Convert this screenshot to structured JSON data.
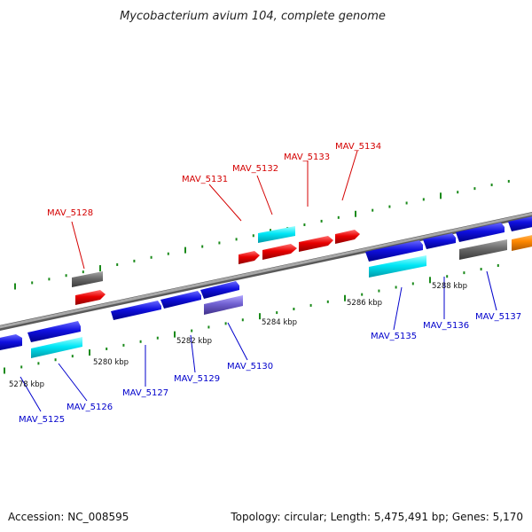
{
  "header": {
    "title": "Mycobacterium avium 104, complete genome"
  },
  "footer": {
    "accession": "Accession: NC_008595",
    "summary": "Topology: circular; Length: 5,475,491 bp; Genes: 5,170"
  },
  "kbp_labels": [
    "5278 kbp",
    "5280 kbp",
    "5282 kbp",
    "5284 kbp",
    "5286 kbp",
    "5288 kbp"
  ],
  "gene_labels": {
    "MAV_5125": "MAV_5125",
    "MAV_5126": "MAV_5126",
    "MAV_5127": "MAV_5127",
    "MAV_5128": "MAV_5128",
    "MAV_5129": "MAV_5129",
    "MAV_5130": "MAV_5130",
    "MAV_5131": "MAV_5131",
    "MAV_5132": "MAV_5132",
    "MAV_5133": "MAV_5133",
    "MAV_5134": "MAV_5134",
    "MAV_5135": "MAV_5135",
    "MAV_5136": "MAV_5136",
    "MAV_5137": "MAV_5137"
  },
  "colors": {
    "forward_label": "#d40000",
    "reverse_label": "#0000cc",
    "backbone": "#8a8a8a",
    "tick": "#1a8a1a",
    "cds_blue": "#1010e0",
    "cds_red": "#e00000",
    "cds_cyan": "#00e0f0",
    "cds_gray": "#666666",
    "cds_purple": "#7060d0",
    "cds_orange": "#ff8800"
  }
}
